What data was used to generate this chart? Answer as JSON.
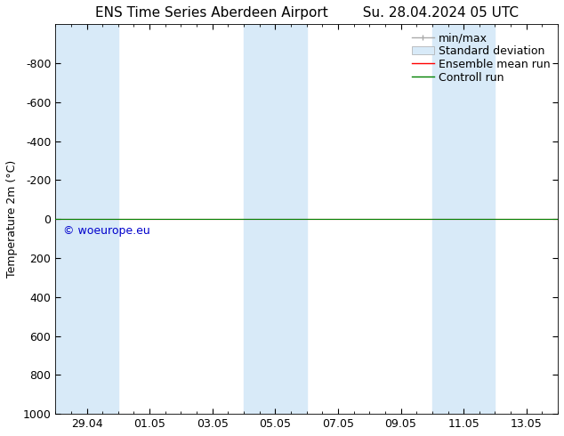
{
  "title_left": "ENS Time Series Aberdeen Airport",
  "title_right": "Su. 28.04.2024 05 UTC",
  "ylabel": "Temperature 2m (°C)",
  "ylim": [
    -1000,
    1000
  ],
  "yticks": [
    -800,
    -600,
    -400,
    -200,
    0,
    200,
    400,
    600,
    800,
    1000
  ],
  "xtick_labels": [
    "29.04",
    "01.05",
    "03.05",
    "05.05",
    "07.05",
    "09.05",
    "11.05",
    "13.05"
  ],
  "xtick_positions": [
    1,
    3,
    5,
    7,
    9,
    11,
    13,
    15
  ],
  "xlim": [
    0,
    16
  ],
  "shaded_bands": [
    [
      0,
      1
    ],
    [
      1,
      2
    ],
    [
      6,
      7
    ],
    [
      7,
      8
    ],
    [
      12,
      13
    ],
    [
      13,
      14
    ]
  ],
  "shaded_color": "#d8eaf8",
  "line_y": 0,
  "green_line_color": "#008000",
  "red_line_color": "#ff0000",
  "watermark_text": "© woeurope.eu",
  "watermark_color": "#0000cc",
  "legend_entries": [
    "min/max",
    "Standard deviation",
    "Ensemble mean run",
    "Controll run"
  ],
  "legend_line_color": "#aaaaaa",
  "legend_std_color": "#d8eaf8",
  "legend_ens_color": "#ff0000",
  "legend_ctrl_color": "#008000",
  "background_color": "#ffffff",
  "font_size": 9,
  "title_font_size": 11
}
